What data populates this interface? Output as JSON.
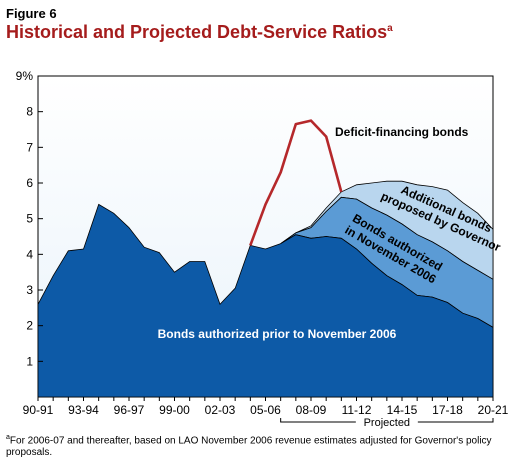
{
  "figure_label": "Figure 6",
  "title": "Historical and Projected Debt-Service Ratios",
  "title_footnote_mark": "a",
  "footnote": {
    "mark": "a",
    "text": "For 2006-07 and thereafter, based on LAO November 2006 revenue estimates adjusted for Governor's policy proposals."
  },
  "colors": {
    "title": "#a51c1c",
    "prior_bonds": "#0d5aa7",
    "authorized_2006": "#5b9bd5",
    "governor_bonds": "#b9d6ee",
    "deficit_line": "#b5282b",
    "plot_bg_top": "#ffffff",
    "plot_bg_bottom": "#e9f3fb"
  },
  "chart_data": {
    "type": "area",
    "x_tick_labels": [
      "90-91",
      "93-94",
      "96-97",
      "99-00",
      "02-03",
      "05-06",
      "08-09",
      "11-12",
      "14-15",
      "17-18",
      "20-21"
    ],
    "x": [
      "90-91",
      "91-92",
      "92-93",
      "93-94",
      "94-95",
      "95-96",
      "96-97",
      "97-98",
      "98-99",
      "99-00",
      "00-01",
      "01-02",
      "02-03",
      "03-04",
      "04-05",
      "05-06",
      "06-07",
      "07-08",
      "08-09",
      "09-10",
      "10-11",
      "11-12",
      "12-13",
      "13-14",
      "14-15",
      "15-16",
      "16-17",
      "17-18",
      "18-19",
      "19-20",
      "20-21"
    ],
    "ylim": [
      0,
      9
    ],
    "y_ticks": [
      "1",
      "2",
      "3",
      "4",
      "5",
      "6",
      "7",
      "8",
      "9%"
    ],
    "projected_label": "Projected",
    "projected_range": [
      "06-07",
      "20-21"
    ],
    "series": [
      {
        "name": "Bonds authorized prior to November 2006",
        "kind": "area",
        "values": [
          2.6,
          3.4,
          4.1,
          4.15,
          5.4,
          5.15,
          4.75,
          4.2,
          4.05,
          3.5,
          3.8,
          3.8,
          2.6,
          3.05,
          4.25,
          4.15,
          4.3,
          4.55,
          4.45,
          4.5,
          4.45,
          4.15,
          3.75,
          3.4,
          3.15,
          2.85,
          2.8,
          2.65,
          2.35,
          2.2,
          1.95
        ]
      },
      {
        "name": "Bonds authorized in November 2006",
        "kind": "area",
        "values": [
          null,
          null,
          null,
          null,
          null,
          null,
          null,
          null,
          null,
          null,
          null,
          null,
          null,
          null,
          null,
          null,
          4.3,
          4.6,
          4.75,
          5.2,
          5.6,
          5.55,
          5.3,
          5.1,
          4.85,
          4.55,
          4.35,
          4.1,
          3.8,
          3.55,
          3.3
        ]
      },
      {
        "name": "Additional bonds proposed by Governor",
        "kind": "area",
        "values": [
          null,
          null,
          null,
          null,
          null,
          null,
          null,
          null,
          null,
          null,
          null,
          null,
          null,
          null,
          null,
          null,
          4.3,
          4.6,
          4.8,
          5.3,
          5.75,
          5.95,
          6.0,
          6.05,
          6.05,
          5.95,
          5.9,
          5.8,
          5.45,
          5.15,
          4.7
        ]
      },
      {
        "name": "Deficit-financing bonds",
        "kind": "line",
        "values": [
          null,
          null,
          null,
          null,
          null,
          null,
          null,
          null,
          null,
          null,
          null,
          null,
          null,
          null,
          4.25,
          5.4,
          6.3,
          7.65,
          7.75,
          7.3,
          5.75,
          null,
          null,
          null,
          null,
          null,
          null,
          null,
          null,
          null,
          null
        ]
      }
    ],
    "labels": {
      "prior": "Bonds authorized prior to November 2006",
      "authorized_line1": "Bonds authorized",
      "authorized_line2": "in November 2006",
      "governor_line1": "Additional bonds",
      "governor_line2": "proposed by Governor",
      "deficit": "Deficit-financing bonds"
    }
  }
}
